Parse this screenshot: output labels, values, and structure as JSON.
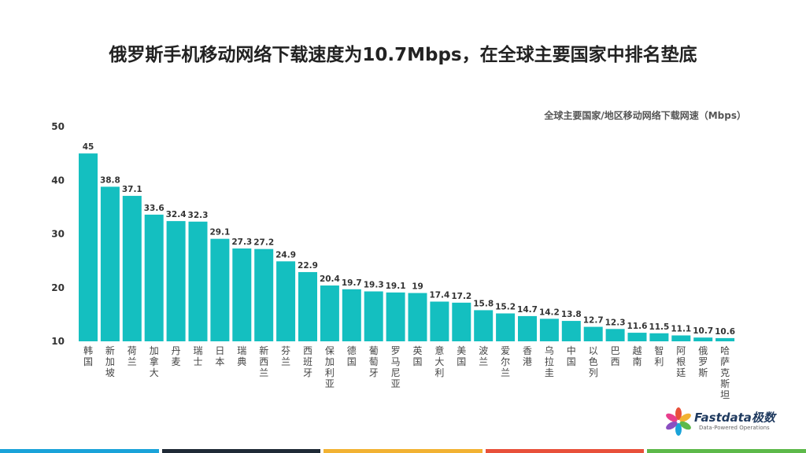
{
  "title": "俄罗斯手机移动网络下载速度为10.7Mbps，在全球主要国家中排名垫底",
  "chart_data": {
    "type": "bar",
    "title": "俄罗斯手机移动网络下载速度为10.7Mbps，在全球主要国家中排名垫底",
    "subtitle": "全球主要国家/地区移动网络下载网速（Mbps）",
    "categories": [
      "韩国",
      "新加坡",
      "荷兰",
      "加拿大",
      "丹麦",
      "瑞士",
      "日本",
      "瑞典",
      "新西兰",
      "芬兰",
      "西班牙",
      "保加利亚",
      "德国",
      "葡萄牙",
      "罗马尼亚",
      "英国",
      "意大利",
      "美国",
      "波兰",
      "爱尔兰",
      "香港",
      "乌拉圭",
      "中国",
      "以色列",
      "巴西",
      "越南",
      "智利",
      "阿根廷",
      "俄罗斯",
      "哈萨克斯坦"
    ],
    "values": [
      45,
      38.8,
      37.1,
      33.6,
      32.4,
      32.3,
      29.1,
      27.3,
      27.2,
      24.9,
      22.9,
      20.4,
      19.7,
      19.3,
      19.1,
      19,
      17.4,
      17.2,
      15.8,
      15.2,
      14.7,
      14.2,
      13.8,
      12.7,
      12.3,
      11.6,
      11.5,
      11.1,
      10.7,
      10.6
    ],
    "ylim": [
      10,
      50
    ],
    "yticks": [
      10,
      20,
      30,
      40,
      50
    ],
    "xlabel": "",
    "ylabel": "",
    "bar_color": "#14bfc0",
    "grid": false,
    "data_labels": true
  },
  "logo": {
    "text": "Fastdata极数",
    "tagline": "Data-Powered Operations"
  },
  "footer_colors": [
    "#1aa3d9",
    "#1f2a36",
    "#f2b232",
    "#e8503a",
    "#5db94a"
  ]
}
